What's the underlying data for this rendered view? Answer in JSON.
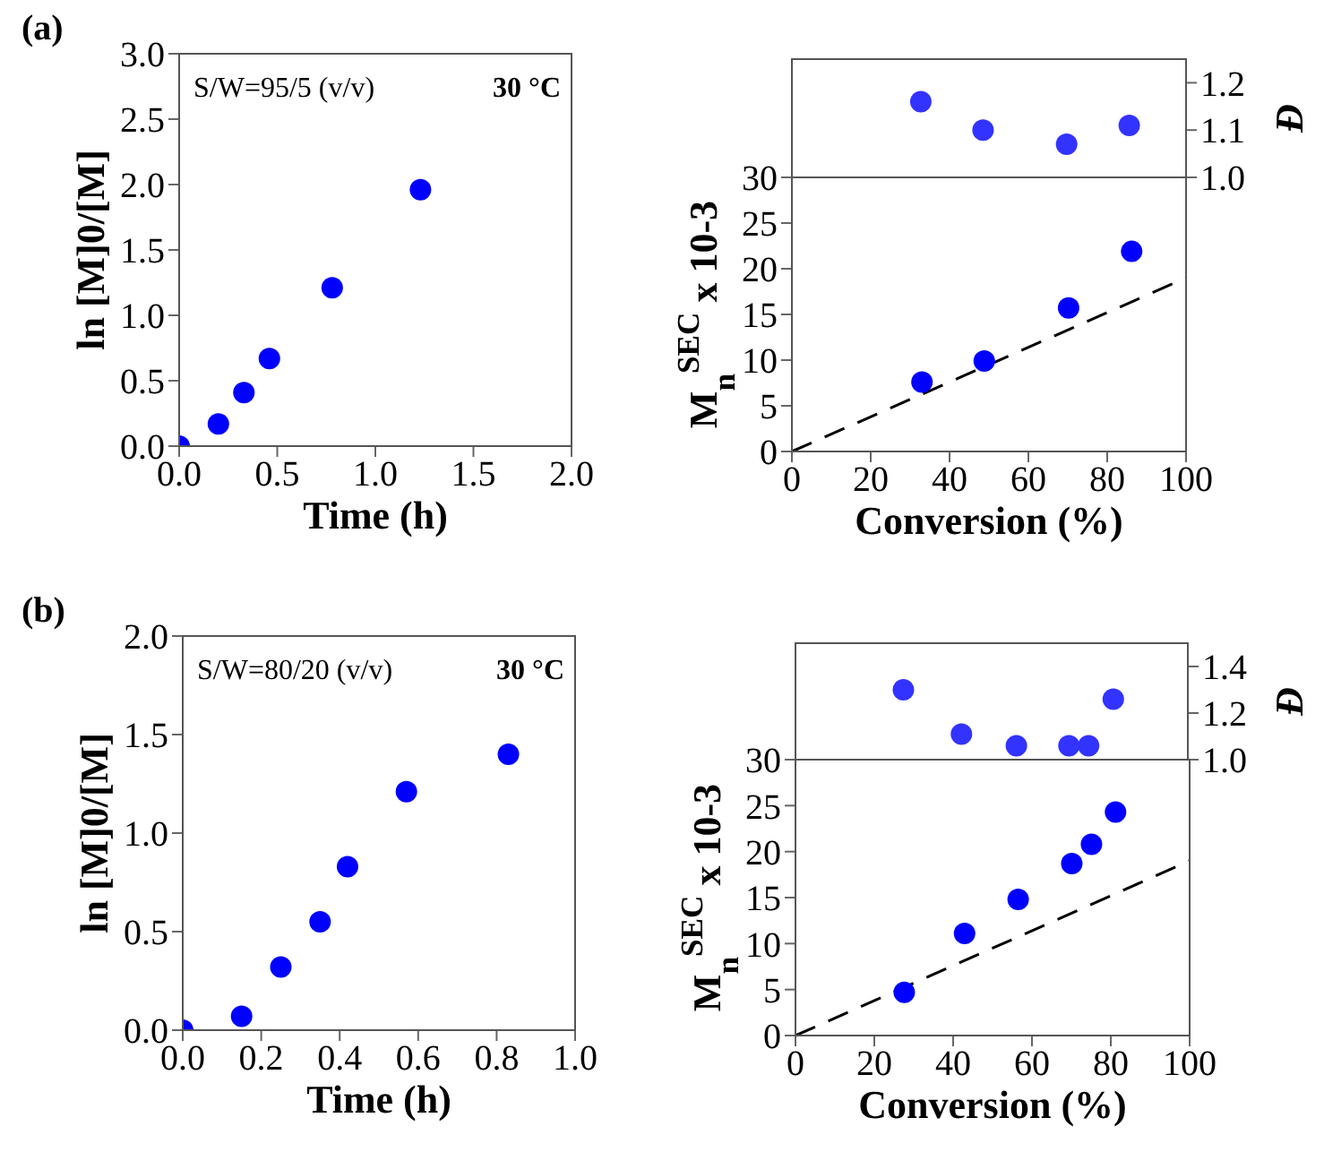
{
  "chart_data": [
    {
      "type": "scatter",
      "title": "(a)",
      "xlabel": "Time (h)",
      "ylabel": "ln [M]0/[M]",
      "annotations": [
        "S/W=95/5 (v/v)",
        "30 °C"
      ],
      "xlim": [
        0,
        2
      ],
      "xticks": [
        {
          "value": 0,
          "label": "0.0"
        },
        0.5,
        {
          "value": 1,
          "label": "1.0"
        },
        1.5,
        {
          "value": 2,
          "label": "2.0"
        }
      ],
      "ylim": [
        0,
        3
      ],
      "yticks": [
        {
          "value": 0,
          "label": "0.0"
        },
        0.5,
        {
          "value": 1,
          "label": "1.0"
        },
        1.5,
        {
          "value": 2,
          "label": "2.0"
        },
        2.5,
        {
          "value": 3,
          "label": "3.0"
        }
      ],
      "grid": false,
      "marker": "circle",
      "series": [
        {
          "color": "#0000ff",
          "x": [
            0,
            0.2,
            0.33,
            0.46,
            0.78,
            1.23
          ],
          "values": [
            0,
            0.17,
            0.41,
            0.67,
            1.21,
            1.96
          ]
        }
      ]
    },
    {
      "type": "scatter",
      "ylabel": "Đ",
      "xlim": [
        0,
        100
      ],
      "ylim": [
        1.0,
        1.25
      ],
      "yticks": [
        {
          "value": 1,
          "label": "1.0"
        },
        1.1,
        1.2
      ],
      "tick_labels": "y",
      "grid": false,
      "marker": "circle",
      "series": [
        {
          "color": "#3333ff",
          "x": [
            32.7,
            48.5,
            69.7,
            85.6
          ],
          "values": [
            1.16,
            1.1,
            1.07,
            1.11
          ]
        }
      ]
    },
    {
      "type": "scatter",
      "xlabel": "Conversion (%)",
      "ylabel": "M$_{n}$$^{SEC}$ x 10-3",
      "xlim": [
        0,
        100
      ],
      "xticks": [
        0,
        20,
        40,
        60,
        80,
        100
      ],
      "ylim": [
        0,
        30
      ],
      "yticks": [
        0,
        5,
        10,
        15,
        20,
        25,
        30
      ],
      "grid": false,
      "marker": "circle",
      "series": [
        {
          "color": "#0000ff",
          "x": [
            33,
            48.8,
            70.2,
            86.2
          ],
          "values": [
            7.6,
            9.9,
            15.7,
            21.9
          ]
        },
        {
          "type": "line",
          "color": "#000000",
          "line_style": "dashed",
          "marker": "none",
          "x": [
            0,
            100
          ],
          "values": [
            0,
            19
          ]
        }
      ]
    },
    {
      "type": "scatter",
      "title": "(b)",
      "xlabel": "Time (h)",
      "ylabel": "ln [M]0/[M]",
      "annotations": [
        "S/W=80/20 (v/v)",
        "30 °C"
      ],
      "xlim": [
        0,
        1
      ],
      "xticks": [
        {
          "value": 0,
          "label": "0.0"
        },
        0.2,
        0.4,
        0.6,
        0.8,
        {
          "value": 1,
          "label": "1.0"
        }
      ],
      "ylim": [
        0,
        2
      ],
      "yticks": [
        {
          "value": 0,
          "label": "0.0"
        },
        0.5,
        {
          "value": 1,
          "label": "1.0"
        },
        1.5,
        {
          "value": 2,
          "label": "2.0"
        }
      ],
      "grid": false,
      "marker": "circle",
      "series": [
        {
          "color": "#0000ff",
          "x": [
            0,
            0.15,
            0.25,
            0.35,
            0.42,
            0.57,
            0.83
          ],
          "values": [
            0,
            0.07,
            0.32,
            0.55,
            0.83,
            1.21,
            1.4
          ]
        }
      ]
    },
    {
      "type": "scatter",
      "ylabel": "Đ",
      "xlim": [
        0,
        100
      ],
      "ylim": [
        1.0,
        1.5
      ],
      "yticks": [
        {
          "value": 1,
          "label": "1.0"
        },
        1.2,
        1.4
      ],
      "tick_labels": "y",
      "grid": false,
      "marker": "circle",
      "series": [
        {
          "color": "#3333ff",
          "x": [
            27.5,
            42.3,
            56.3,
            69.7,
            74.7,
            81
          ],
          "values": [
            1.3,
            1.11,
            1.06,
            1.06,
            1.06,
            1.26
          ]
        }
      ]
    },
    {
      "type": "scatter",
      "xlabel": "Conversion (%)",
      "ylabel": "M$_{n}$$^{SEC}$ x 10-3",
      "xlim": [
        0,
        100
      ],
      "xticks": [
        0,
        20,
        40,
        60,
        80,
        100
      ],
      "ylim": [
        0,
        30
      ],
      "yticks": [
        0,
        5,
        10,
        15,
        20,
        25,
        30
      ],
      "grid": false,
      "marker": "circle",
      "series": [
        {
          "color": "#0000ff",
          "x": [
            27.6,
            42.9,
            56.5,
            70.1,
            75.1,
            81.2
          ],
          "values": [
            4.7,
            11.1,
            14.8,
            18.7,
            20.8,
            24.3
          ]
        },
        {
          "type": "line",
          "color": "#000000",
          "line_style": "dashed",
          "marker": "none",
          "x": [
            0,
            100
          ],
          "values": [
            0,
            19
          ]
        }
      ]
    }
  ]
}
